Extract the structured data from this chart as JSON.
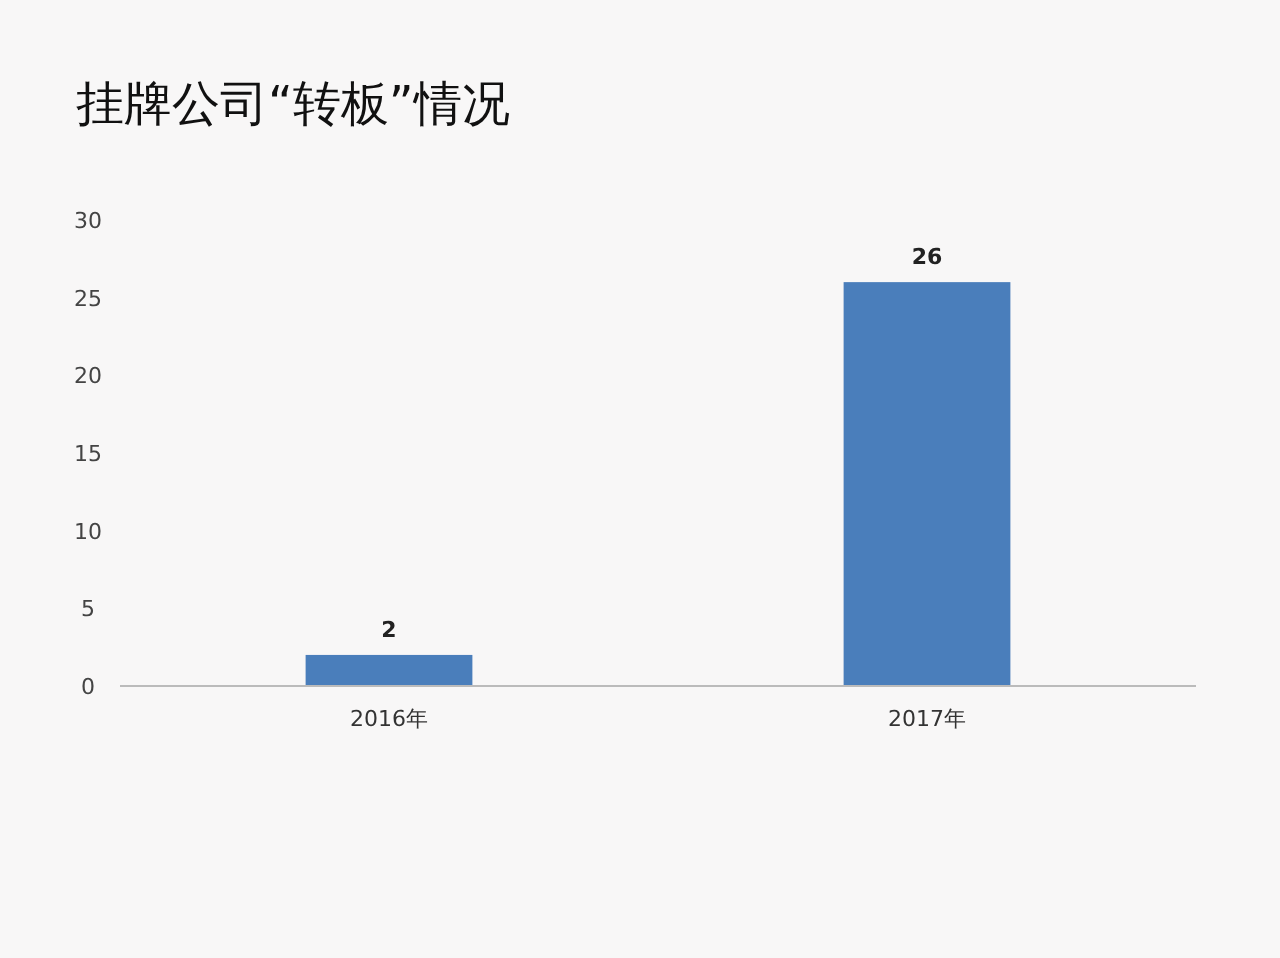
{
  "chart_data": {
    "type": "bar",
    "title": "挂牌公司“转板”情况",
    "categories": [
      "2016年",
      "2017年"
    ],
    "values": [
      2,
      26
    ],
    "color": "#4a7ebb",
    "ylim": [
      0,
      30
    ],
    "yticks": [
      0,
      5,
      10,
      15,
      20,
      25,
      30
    ],
    "grid": false,
    "data_labels": true
  }
}
